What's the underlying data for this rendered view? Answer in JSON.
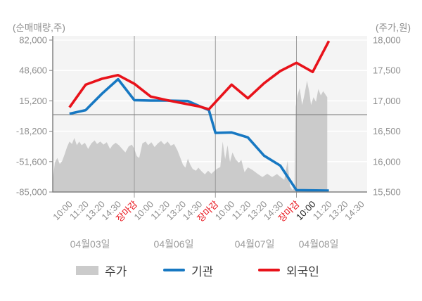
{
  "chart_data": {
    "type": "area+line combo (intraday stock chart)",
    "left_axis": {
      "title": "(순매매량,주)",
      "tick_values": [
        82000,
        48600,
        15200,
        -18200,
        -51600,
        -85000
      ],
      "tick_labels": [
        "82,000",
        "48,600",
        "15,200",
        "-18,200",
        "-51,600",
        "-85,000"
      ],
      "range": [
        -85000,
        82000
      ]
    },
    "right_axis": {
      "title": "(주가,원)",
      "tick_values": [
        18000,
        17500,
        17000,
        16500,
        16000,
        15500
      ],
      "tick_labels": [
        "18,000",
        "17,500",
        "17,000",
        "16,500",
        "16,000",
        "15,500"
      ],
      "range": [
        15500,
        18000
      ]
    },
    "x_axis": {
      "ticks": [
        {
          "t": 0,
          "label": "10:00",
          "style": "normal"
        },
        {
          "t": 1,
          "label": "11:20",
          "style": "normal"
        },
        {
          "t": 2,
          "label": "13:20",
          "style": "normal"
        },
        {
          "t": 3,
          "label": "14:30",
          "style": "normal"
        },
        {
          "t": 4,
          "label": "장마감",
          "style": "close"
        },
        {
          "t": 5,
          "label": "10:00",
          "style": "normal"
        },
        {
          "t": 6,
          "label": "11:20",
          "style": "normal"
        },
        {
          "t": 7,
          "label": "13:20",
          "style": "normal"
        },
        {
          "t": 8,
          "label": "14:30",
          "style": "normal"
        },
        {
          "t": 9,
          "label": "장마감",
          "style": "close"
        },
        {
          "t": 10,
          "label": "10:00",
          "style": "normal"
        },
        {
          "t": 11,
          "label": "11:20",
          "style": "normal"
        },
        {
          "t": 12,
          "label": "13:20",
          "style": "normal"
        },
        {
          "t": 13,
          "label": "14:30",
          "style": "normal"
        },
        {
          "t": 14,
          "label": "장마감",
          "style": "close"
        },
        {
          "t": 15,
          "label": "10:00",
          "style": "current"
        },
        {
          "t": 16,
          "label": "11:20",
          "style": "normal"
        },
        {
          "t": 17,
          "label": "13:20",
          "style": "normal"
        },
        {
          "t": 18,
          "label": "14:30",
          "style": "normal"
        }
      ],
      "days": [
        {
          "label": "04월03일",
          "t_center": 1.27
        },
        {
          "label": "04월06일",
          "t_center": 6.43
        },
        {
          "label": "04월07일",
          "t_center": 11.42
        },
        {
          "label": "04월08일",
          "t_center": 15.37
        }
      ],
      "day_boundaries_t": [
        4,
        9,
        14
      ]
    },
    "zero_line_value": 0,
    "series": [
      {
        "name": "주가",
        "type": "area",
        "axis": "right",
        "color": "#cbcbcb",
        "points": [
          [
            -1.03,
            15690
          ],
          [
            -0.9,
            15990
          ],
          [
            -0.75,
            16060
          ],
          [
            -0.6,
            15960
          ],
          [
            -0.45,
            16010
          ],
          [
            -0.3,
            16120
          ],
          [
            -0.15,
            16240
          ],
          [
            0,
            16330
          ],
          [
            0.15,
            16290
          ],
          [
            0.3,
            16390
          ],
          [
            0.45,
            16270
          ],
          [
            0.6,
            16330
          ],
          [
            0.75,
            16270
          ],
          [
            0.95,
            16310
          ],
          [
            1.15,
            16210
          ],
          [
            1.35,
            16300
          ],
          [
            1.55,
            16350
          ],
          [
            1.7,
            16290
          ],
          [
            1.9,
            16330
          ],
          [
            2.1,
            16280
          ],
          [
            2.3,
            16320
          ],
          [
            2.5,
            16210
          ],
          [
            2.65,
            16270
          ],
          [
            2.85,
            16310
          ],
          [
            3.05,
            16270
          ],
          [
            3.25,
            16210
          ],
          [
            3.45,
            16150
          ],
          [
            3.65,
            16250
          ],
          [
            3.85,
            16280
          ],
          [
            4,
            16210
          ],
          [
            4.15,
            16090
          ],
          [
            4.3,
            16060
          ],
          [
            4.5,
            16300
          ],
          [
            4.7,
            16330
          ],
          [
            4.85,
            16270
          ],
          [
            5.05,
            16320
          ],
          [
            5.25,
            16240
          ],
          [
            5.45,
            16300
          ],
          [
            5.65,
            16340
          ],
          [
            5.85,
            16280
          ],
          [
            6.05,
            16330
          ],
          [
            6.25,
            16260
          ],
          [
            6.45,
            16290
          ],
          [
            6.65,
            16190
          ],
          [
            6.8,
            16090
          ],
          [
            7,
            15950
          ],
          [
            7.15,
            15900
          ],
          [
            7.3,
            16050
          ],
          [
            7.45,
            15950
          ],
          [
            7.6,
            15880
          ],
          [
            7.8,
            15850
          ],
          [
            7.95,
            15900
          ],
          [
            8.15,
            15840
          ],
          [
            8.35,
            15790
          ],
          [
            8.55,
            15850
          ],
          [
            8.75,
            15800
          ],
          [
            8.95,
            15850
          ],
          [
            9.15,
            15890
          ],
          [
            9.3,
            15910
          ],
          [
            9.45,
            16330
          ],
          [
            9.6,
            16040
          ],
          [
            9.75,
            16270
          ],
          [
            9.9,
            15995
          ],
          [
            10.05,
            16150
          ],
          [
            10.25,
            16035
          ],
          [
            10.45,
            15980
          ],
          [
            10.6,
            16030
          ],
          [
            10.8,
            15825
          ],
          [
            11,
            15905
          ],
          [
            11.3,
            15860
          ],
          [
            11.6,
            15800
          ],
          [
            11.9,
            15745
          ],
          [
            12.2,
            15800
          ],
          [
            12.5,
            15745
          ],
          [
            12.8,
            15795
          ],
          [
            13.05,
            15740
          ],
          [
            13.25,
            15700
          ],
          [
            13.45,
            16010
          ],
          [
            13.6,
            15600
          ],
          [
            13.75,
            15535
          ],
          [
            13.88,
            15560
          ],
          [
            13.95,
            16900
          ],
          [
            14.05,
            17080
          ],
          [
            14.2,
            17210
          ],
          [
            14.35,
            16930
          ],
          [
            14.5,
            17110
          ],
          [
            14.65,
            17330
          ],
          [
            14.8,
            17140
          ],
          [
            14.9,
            16930
          ],
          [
            15.05,
            17060
          ],
          [
            15.2,
            16985
          ],
          [
            15.35,
            17195
          ],
          [
            15.5,
            17090
          ],
          [
            15.65,
            17160
          ],
          [
            15.9,
            17060
          ]
        ]
      },
      {
        "name": "기관",
        "type": "line",
        "axis": "left",
        "color": "#1778c2",
        "points": [
          [
            0,
            1000
          ],
          [
            1,
            5000
          ],
          [
            2,
            23000
          ],
          [
            3,
            39000
          ],
          [
            4,
            16000
          ],
          [
            5,
            15500
          ],
          [
            6,
            15500
          ],
          [
            7.3,
            15000
          ],
          [
            8,
            9500
          ],
          [
            8.6,
            5000
          ],
          [
            9,
            -20000
          ],
          [
            10,
            -19500
          ],
          [
            11,
            -25000
          ],
          [
            12,
            -45000
          ],
          [
            13,
            -56000
          ],
          [
            14,
            -83000
          ],
          [
            16,
            -83500
          ]
        ]
      },
      {
        "name": "외국인",
        "type": "line",
        "axis": "left",
        "color": "#e8121a",
        "points": [
          [
            0,
            8000
          ],
          [
            1,
            33000
          ],
          [
            2,
            39500
          ],
          [
            3,
            43500
          ],
          [
            4,
            34000
          ],
          [
            5,
            20000
          ],
          [
            6,
            16000
          ],
          [
            7,
            12500
          ],
          [
            8,
            9000
          ],
          [
            8.6,
            6000
          ],
          [
            10,
            33000
          ],
          [
            11,
            18000
          ],
          [
            12,
            34500
          ],
          [
            13,
            48000
          ],
          [
            14,
            57000
          ],
          [
            15,
            47000
          ],
          [
            16,
            81000
          ]
        ]
      }
    ],
    "colors": {
      "price_area": "#cbcbcb",
      "institution_line": "#1778c2",
      "foreigner_line": "#e8121a",
      "tick_label": "#8e8e8e",
      "close_tick_label": "#e8121a",
      "current_tick_label": "#1f1f1f",
      "date_label": "#9b9b9b",
      "plot_background": "#f4f4f4",
      "day_separator": "#9b9b9b",
      "zero_line": "#7e7e7e",
      "axis_line": "#828282"
    }
  },
  "legend": {
    "items": [
      {
        "label": "주가",
        "marker": "area",
        "color": "#cbcbcb"
      },
      {
        "label": "기관",
        "marker": "line",
        "color": "#1778c2"
      },
      {
        "label": "외국인",
        "marker": "line",
        "color": "#e8121a"
      }
    ]
  }
}
